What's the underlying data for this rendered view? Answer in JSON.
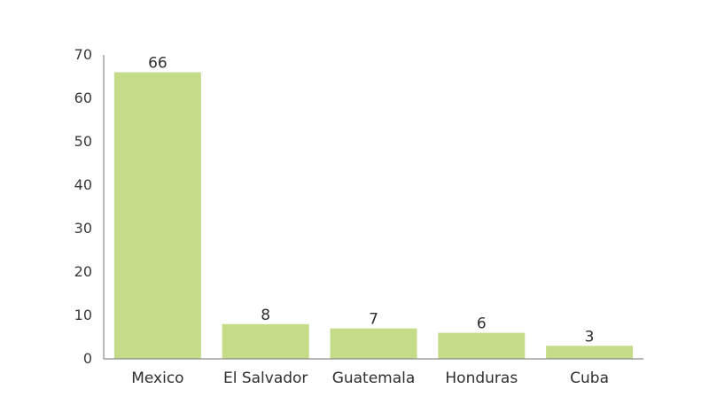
{
  "chart_data": {
    "type": "bar",
    "title": "",
    "xlabel": "",
    "ylabel": "",
    "categories": [
      "Mexico",
      "El Salvador",
      "Guatemala",
      "Honduras",
      "Cuba"
    ],
    "values": [
      66,
      8,
      7,
      6,
      3
    ],
    "data_labels": [
      "66",
      "8",
      "7",
      "6",
      "3"
    ],
    "ylim": [
      0,
      70
    ],
    "yticks": [
      0,
      10,
      20,
      30,
      40,
      50,
      60,
      70
    ],
    "ytick_labels": [
      "0",
      "10",
      "20",
      "30",
      "40",
      "50",
      "60",
      "70"
    ],
    "grid": false,
    "legend": "none",
    "bar_color": "#c4dc88",
    "axis_color": "#8c8c8c",
    "text_color": "#2f2f2f"
  }
}
